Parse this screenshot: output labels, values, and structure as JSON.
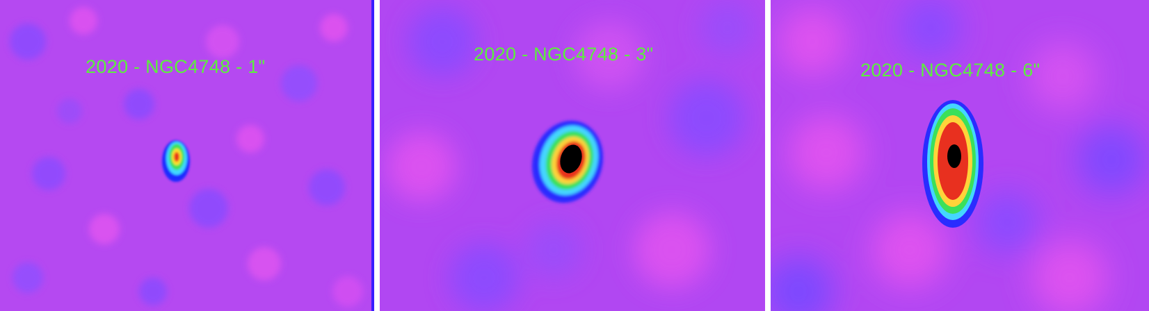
{
  "panels": [
    {
      "label": "2020 - NGC4748 - 1\""
    },
    {
      "label": "2020 - NGC4748 - 3\""
    },
    {
      "label": "2020 - NGC4748 - 6\""
    }
  ],
  "colors": {
    "background_magenta": "#c146f4",
    "background_violet": "#8a4cff",
    "label_green": "#5cf03c",
    "core_black": "#000000",
    "core_red": "#e8301f",
    "ring_green": "#3be05a",
    "ring_cyan": "#44d6ff",
    "ring_blue": "#2a2cff"
  }
}
